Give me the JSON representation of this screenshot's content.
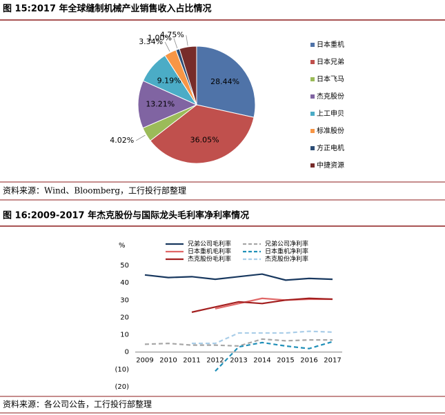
{
  "chart_data": [
    {
      "type": "pie",
      "title": "图 15:2017 年全球缝制机械产业销售收入占比情况",
      "categories": [
        "日本重机",
        "日本兄弟",
        "日本飞马",
        "杰克股份",
        "上工申贝",
        "标准股份",
        "方正电机",
        "中捷资源"
      ],
      "values": [
        28.44,
        36.05,
        4.02,
        13.21,
        9.19,
        3.34,
        1.0,
        4.75
      ],
      "value_labels": [
        "28.44%",
        "36.05%",
        "4.02%",
        "13.21%",
        "9.19%",
        "3.34%",
        "1.00%",
        "4.75%"
      ],
      "colors": [
        "#4f73a8",
        "#c0504d",
        "#9bbb59",
        "#8064a2",
        "#4bacc6",
        "#f79646",
        "#2c4d75",
        "#772c2a"
      ],
      "legend": "right",
      "source": "资料来源：Wind、Bloomberg，工行投行部整理"
    },
    {
      "type": "line",
      "title": "图 16:2009-2017 年杰克股份与国际龙头毛利率净利率情况",
      "y_label": "%",
      "categories": [
        "2009",
        "2010",
        "2011",
        "2012",
        "2013",
        "2014",
        "2015",
        "2016",
        "2017"
      ],
      "series": [
        {
          "name": "兄弟公司毛利率",
          "color": "#17375e",
          "dashed": false,
          "values": [
            44.5,
            43,
            43.5,
            42,
            43.5,
            45,
            41.5,
            42.5,
            42
          ]
        },
        {
          "name": "兄弟公司净利率",
          "color": "#a6a6a6",
          "dashed": true,
          "values": [
            4.5,
            5,
            4,
            4,
            3.5,
            7.5,
            6.5,
            7,
            7
          ]
        },
        {
          "name": "日本重机毛利率",
          "color": "#e06666",
          "dashed": false,
          "values": [
            null,
            null,
            null,
            25,
            28,
            31,
            30,
            30.5,
            30.5
          ]
        },
        {
          "name": "日本重机净利率",
          "color": "#1f8fb8",
          "dashed": true,
          "values": [
            null,
            null,
            null,
            -11,
            3,
            5.5,
            3.5,
            2,
            6
          ]
        },
        {
          "name": "杰克股份毛利率",
          "color": "#a31f1f",
          "dashed": false,
          "values": [
            null,
            null,
            23,
            26,
            29,
            28,
            30,
            31,
            30.5
          ]
        },
        {
          "name": "杰克股份净利率",
          "color": "#a9cde8",
          "dashed": true,
          "values": [
            null,
            null,
            5,
            5,
            11,
            11,
            11,
            12,
            11.5
          ]
        }
      ],
      "ylim": [
        -20,
        50
      ],
      "yticks": [
        50,
        40,
        30,
        20,
        10,
        0,
        {
          "value": -10,
          "label": "(10)"
        },
        {
          "value": -20,
          "label": "(20)"
        }
      ],
      "legend": "top",
      "source": "资料来源：各公司公告，工行投行部整理"
    }
  ]
}
